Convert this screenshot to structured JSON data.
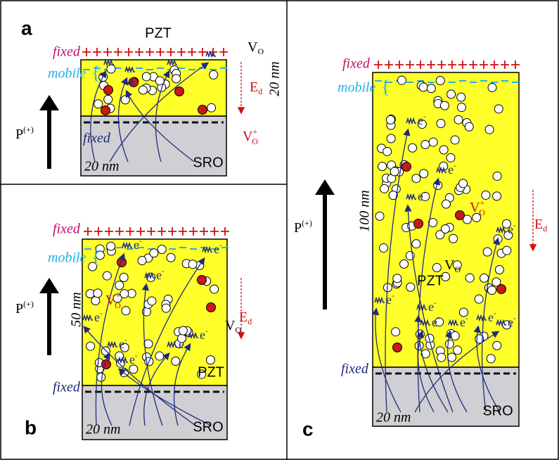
{
  "panels": [
    {
      "letter": "a",
      "material": "PZT",
      "fixed_top": "fixed",
      "mobile": "mobile",
      "vacancy": {
        "main": "V",
        "sub": "O"
      },
      "field": {
        "main": "E",
        "sub": "d"
      },
      "thickness": "20 nm",
      "ion": {
        "main": "V",
        "sub": "O",
        "sup": "+"
      },
      "polarization": {
        "main": "P",
        "sup": "(+)"
      },
      "fixed_bottom": "fixed",
      "electrode_thickness": "20 nm",
      "electrode": "SRO"
    },
    {
      "letter": "b",
      "material": "PZT",
      "fixed_top": "fixed",
      "mobile": "mobile",
      "vacancy": {
        "main": "V",
        "sub": "O"
      },
      "field": {
        "main": "E",
        "sub": "d"
      },
      "thickness": "50 nm",
      "ion": {
        "main": "V",
        "sub": "O",
        "sup": "+"
      },
      "polarization": {
        "main": "P",
        "sup": "(+)"
      },
      "fixed_bottom": "fixed",
      "electrode_thickness": "20 nm",
      "electrode": "SRO",
      "electron": {
        "main": "e",
        "sup": "-"
      }
    },
    {
      "letter": "c",
      "material": "PZT",
      "fixed_top": "fixed",
      "mobile": "mobile",
      "vacancy": {
        "main": "V",
        "sub": "O"
      },
      "field": {
        "main": "E",
        "sub": "d"
      },
      "thickness": "100 nm",
      "ion": {
        "main": "V",
        "sub": "O",
        "sup": "+"
      },
      "polarization": {
        "main": "P",
        "sup": "(+)"
      },
      "fixed_bottom": "fixed",
      "electrode_thickness": "20 nm",
      "electrode": "SRO",
      "electron": {
        "main": "e",
        "sup": "-"
      }
    }
  ]
}
